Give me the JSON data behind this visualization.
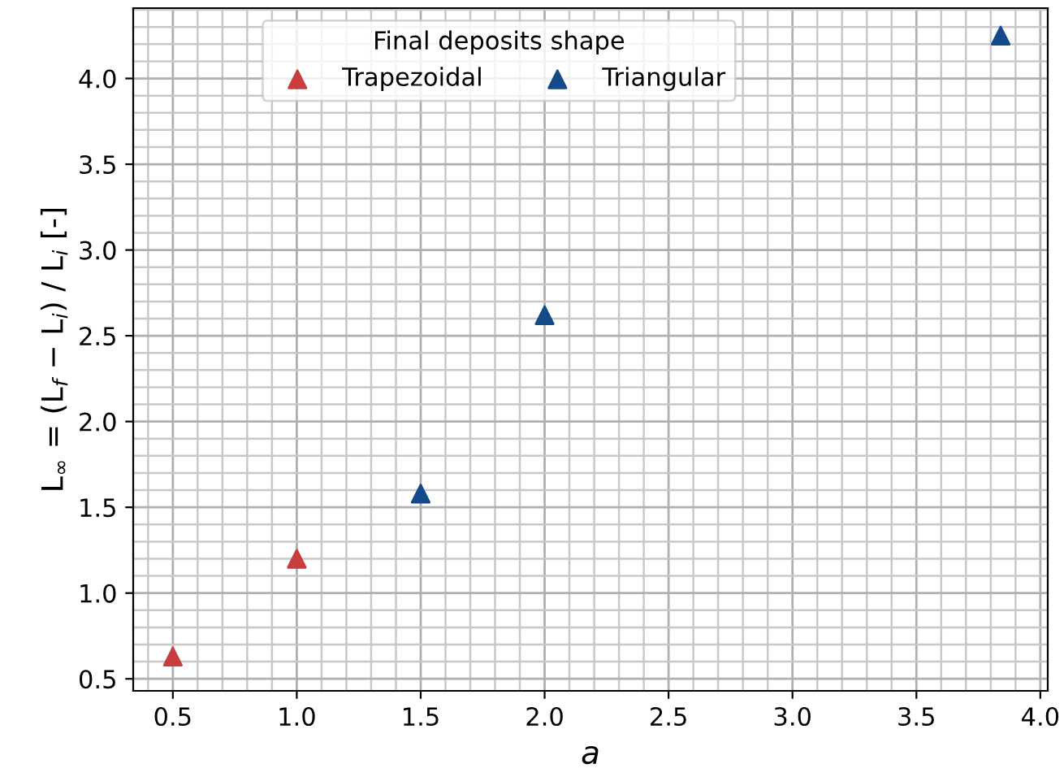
{
  "chart_data": {
    "type": "scatter",
    "xlabel": "a",
    "ylabel": "L$_{∞}$ = (L$_{f}$ − L$_{i}$) / L$_{i}$ [-]",
    "legend_title": "Final deposits shape",
    "series": [
      {
        "name": "Trapezoidal",
        "color": "#c83e3e",
        "marker": "triangle",
        "x": [
          0.5,
          1.0
        ],
        "values": [
          0.63,
          1.2
        ]
      },
      {
        "name": "Triangular",
        "color": "#154a8a",
        "marker": "triangle",
        "x": [
          1.5,
          2.0,
          3.84
        ],
        "values": [
          1.58,
          2.62,
          4.25
        ]
      }
    ],
    "xlim": [
      0.34,
      4.03
    ],
    "ylim": [
      0.43,
      4.41
    ],
    "xticks": [
      {
        "value": 0.5,
        "label": "0.5"
      },
      {
        "value": 1.0,
        "label": "1.0"
      },
      {
        "value": 1.5,
        "label": "1.5"
      },
      {
        "value": 2.0,
        "label": "2.0"
      },
      {
        "value": 2.5,
        "label": "2.5"
      },
      {
        "value": 3.0,
        "label": "3.0"
      },
      {
        "value": 3.5,
        "label": "3.5"
      },
      {
        "value": 4.0,
        "label": "4.0"
      }
    ],
    "yticks": [
      {
        "value": 0.5,
        "label": "0.5"
      },
      {
        "value": 1.0,
        "label": "1.0"
      },
      {
        "value": 1.5,
        "label": "1.5"
      },
      {
        "value": 2.0,
        "label": "2.0"
      },
      {
        "value": 2.5,
        "label": "2.5"
      },
      {
        "value": 3.0,
        "label": "3.0"
      },
      {
        "value": 3.5,
        "label": "3.5"
      },
      {
        "value": 4.0,
        "label": "4.0"
      }
    ],
    "grid": true,
    "legend": "top"
  }
}
